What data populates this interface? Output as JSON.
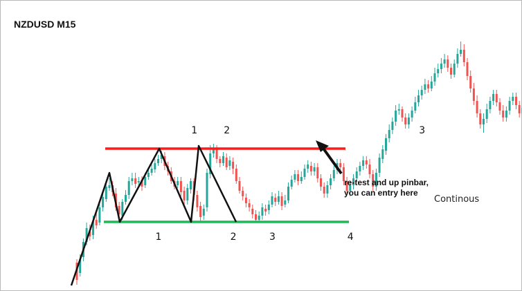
{
  "chart_data": {
    "type": "candlestick",
    "title": "NZDUSD M15",
    "xlabel": "",
    "ylabel": "",
    "grid": false,
    "bull_color": "#26a69a",
    "bear_color": "#ef5350",
    "resistance_color": "#ff1a1a",
    "support_color": "#1db954",
    "structure_color": "#111111",
    "ylim": [
      0,
      421
    ],
    "levels": {
      "resistance": 215,
      "support": 321
    },
    "candles": [
      [
        380,
        405,
        375,
        412
      ],
      [
        395,
        375,
        368,
        400
      ],
      [
        372,
        350,
        345,
        378
      ],
      [
        350,
        330,
        322,
        355
      ],
      [
        335,
        342,
        325,
        348
      ],
      [
        340,
        320,
        312,
        346
      ],
      [
        318,
        326,
        308,
        331
      ],
      [
        322,
        300,
        292,
        326
      ],
      [
        300,
        285,
        278,
        306
      ],
      [
        288,
        270,
        262,
        292
      ],
      [
        272,
        268,
        258,
        276
      ],
      [
        268,
        278,
        262,
        284
      ],
      [
        280,
        300,
        272,
        305
      ],
      [
        298,
        310,
        292,
        315
      ],
      [
        312,
        292,
        288,
        318
      ],
      [
        292,
        282,
        275,
        296
      ],
      [
        282,
        262,
        256,
        288
      ],
      [
        262,
        258,
        250,
        268
      ],
      [
        258,
        266,
        250,
        272
      ],
      [
        264,
        262,
        256,
        270
      ],
      [
        260,
        270,
        255,
        276
      ],
      [
        268,
        256,
        250,
        272
      ],
      [
        256,
        250,
        244,
        260
      ],
      [
        250,
        244,
        238,
        254
      ],
      [
        245,
        236,
        230,
        250
      ],
      [
        236,
        230,
        224,
        240
      ],
      [
        230,
        224,
        218,
        236
      ],
      [
        226,
        240,
        220,
        246
      ],
      [
        240,
        248,
        234,
        254
      ],
      [
        248,
        262,
        242,
        266
      ],
      [
        262,
        270,
        256,
        274
      ],
      [
        268,
        262,
        256,
        272
      ],
      [
        262,
        278,
        256,
        284
      ],
      [
        276,
        290,
        270,
        296
      ],
      [
        290,
        272,
        266,
        296
      ],
      [
        274,
        262,
        258,
        280
      ],
      [
        262,
        282,
        258,
        290
      ],
      [
        282,
        300,
        276,
        306
      ],
      [
        298,
        314,
        292,
        320
      ],
      [
        312,
        302,
        296,
        318
      ],
      [
        300,
        250,
        244,
        306
      ],
      [
        252,
        222,
        210,
        258
      ],
      [
        222,
        214,
        208,
        228
      ],
      [
        214,
        230,
        210,
        236
      ],
      [
        230,
        236,
        226,
        242
      ],
      [
        236,
        226,
        220,
        240
      ],
      [
        228,
        242,
        222,
        246
      ],
      [
        240,
        232,
        226,
        246
      ],
      [
        234,
        244,
        228,
        252
      ],
      [
        244,
        262,
        238,
        266
      ],
      [
        262,
        276,
        256,
        280
      ],
      [
        276,
        284,
        270,
        290
      ],
      [
        286,
        294,
        280,
        300
      ],
      [
        294,
        300,
        288,
        306
      ],
      [
        302,
        310,
        296,
        316
      ],
      [
        310,
        318,
        304,
        322
      ],
      [
        318,
        312,
        306,
        322
      ],
      [
        312,
        300,
        294,
        318
      ],
      [
        302,
        306,
        296,
        312
      ],
      [
        304,
        296,
        290,
        310
      ],
      [
        296,
        284,
        278,
        300
      ],
      [
        286,
        292,
        280,
        298
      ],
      [
        292,
        284,
        276,
        296
      ],
      [
        284,
        298,
        278,
        304
      ],
      [
        296,
        290,
        282,
        300
      ],
      [
        290,
        270,
        264,
        294
      ],
      [
        270,
        260,
        254,
        274
      ],
      [
        260,
        252,
        246,
        264
      ],
      [
        252,
        262,
        246,
        268
      ],
      [
        262,
        256,
        248,
        266
      ],
      [
        256,
        244,
        238,
        260
      ],
      [
        244,
        238,
        232,
        250
      ],
      [
        240,
        248,
        234,
        254
      ],
      [
        248,
        242,
        236,
        254
      ],
      [
        242,
        258,
        236,
        264
      ],
      [
        258,
        270,
        252,
        276
      ],
      [
        270,
        280,
        264,
        286
      ],
      [
        280,
        268,
        262,
        286
      ],
      [
        268,
        258,
        252,
        274
      ],
      [
        258,
        246,
        240,
        262
      ],
      [
        246,
        236,
        230,
        252
      ],
      [
        236,
        242,
        230,
        248
      ],
      [
        242,
        262,
        236,
        268
      ],
      [
        262,
        276,
        256,
        282
      ],
      [
        276,
        268,
        262,
        284
      ],
      [
        268,
        258,
        252,
        274
      ],
      [
        258,
        248,
        242,
        262
      ],
      [
        248,
        240,
        234,
        254
      ],
      [
        240,
        232,
        226,
        246
      ],
      [
        232,
        238,
        226,
        244
      ],
      [
        238,
        252,
        230,
        258
      ],
      [
        252,
        270,
        246,
        276
      ],
      [
        270,
        250,
        244,
        276
      ],
      [
        250,
        228,
        222,
        256
      ],
      [
        230,
        216,
        210,
        236
      ],
      [
        218,
        200,
        194,
        224
      ],
      [
        200,
        188,
        180,
        206
      ],
      [
        188,
        176,
        170,
        194
      ],
      [
        176,
        160,
        152,
        182
      ],
      [
        160,
        158,
        150,
        166
      ],
      [
        158,
        170,
        154,
        176
      ],
      [
        170,
        180,
        164,
        186
      ],
      [
        180,
        170,
        164,
        186
      ],
      [
        170,
        160,
        154,
        176
      ],
      [
        160,
        148,
        140,
        164
      ],
      [
        148,
        138,
        130,
        154
      ],
      [
        138,
        130,
        124,
        144
      ],
      [
        130,
        122,
        114,
        136
      ],
      [
        122,
        128,
        116,
        134
      ],
      [
        128,
        118,
        110,
        132
      ],
      [
        118,
        106,
        98,
        124
      ],
      [
        106,
        100,
        92,
        112
      ],
      [
        100,
        92,
        84,
        106
      ],
      [
        92,
        86,
        78,
        98
      ],
      [
        86,
        98,
        80,
        104
      ],
      [
        98,
        108,
        92,
        114
      ],
      [
        108,
        92,
        86,
        112
      ],
      [
        92,
        78,
        70,
        98
      ],
      [
        78,
        72,
        60,
        82
      ],
      [
        72,
        90,
        64,
        96
      ],
      [
        90,
        110,
        84,
        116
      ],
      [
        110,
        128,
        102,
        134
      ],
      [
        128,
        146,
        120,
        152
      ],
      [
        146,
        164,
        138,
        170
      ],
      [
        164,
        180,
        158,
        186
      ],
      [
        180,
        172,
        164,
        192
      ],
      [
        172,
        158,
        150,
        178
      ],
      [
        158,
        146,
        140,
        164
      ],
      [
        146,
        136,
        130,
        152
      ],
      [
        136,
        148,
        130,
        154
      ],
      [
        148,
        160,
        142,
        166
      ],
      [
        160,
        170,
        152,
        176
      ],
      [
        170,
        160,
        154,
        176
      ],
      [
        160,
        146,
        140,
        166
      ],
      [
        146,
        140,
        134,
        152
      ],
      [
        140,
        152,
        134,
        158
      ],
      [
        152,
        164,
        146,
        170
      ],
      [
        164,
        156,
        150,
        172
      ],
      [
        156,
        146,
        140,
        162
      ],
      [
        146,
        138,
        132,
        152
      ],
      [
        138,
        150,
        132,
        156
      ],
      [
        150,
        162,
        144,
        168
      ],
      [
        162,
        154,
        148,
        168
      ],
      [
        154,
        146,
        140,
        160
      ],
      [
        146,
        136,
        130,
        152
      ],
      [
        136,
        148,
        130,
        154
      ],
      [
        148,
        140,
        134,
        154
      ],
      [
        140,
        132,
        126,
        146
      ],
      [
        132,
        140,
        128,
        146
      ],
      [
        140,
        150,
        134,
        156
      ],
      [
        150,
        160,
        144,
        166
      ],
      [
        160,
        166,
        154,
        172
      ]
    ],
    "pattern_lines": [
      [
        [
          103,
          413
        ],
        [
          158,
          250
        ],
        [
          173,
          321
        ],
        [
          230,
          215
        ],
        [
          276,
          321
        ],
        [
          287,
          211
        ],
        [
          341,
          321
        ]
      ]
    ],
    "labels_top": [
      {
        "text": "1",
        "x_index": 36
      },
      {
        "text": "2",
        "x_index": 46
      },
      {
        "text": "3",
        "x_index": 106
      }
    ],
    "labels_bottom": [
      {
        "text": "1",
        "x_index": 25
      },
      {
        "text": "2",
        "x_index": 48
      },
      {
        "text": "3",
        "x_index": 60
      },
      {
        "text": "4",
        "x_index": 84
      }
    ],
    "annotation": {
      "line1": "re-test and up pinbar,",
      "line2": "you can entry here",
      "side_note": "Continous"
    }
  }
}
